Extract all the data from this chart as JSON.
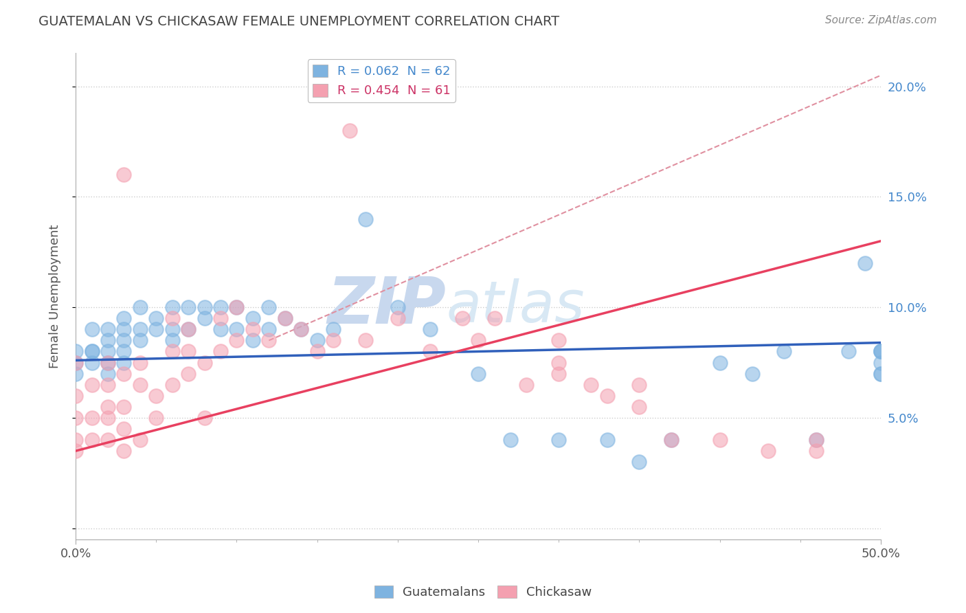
{
  "title": "GUATEMALAN VS CHICKASAW FEMALE UNEMPLOYMENT CORRELATION CHART",
  "source": "Source: ZipAtlas.com",
  "ylabel": "Female Unemployment",
  "y_ticks": [
    0.0,
    0.05,
    0.1,
    0.15,
    0.2
  ],
  "y_tick_labels": [
    "",
    "5.0%",
    "10.0%",
    "15.0%",
    "20.0%"
  ],
  "x_range": [
    0.0,
    0.5
  ],
  "y_range": [
    -0.005,
    0.215
  ],
  "legend_entry1": "R = 0.062  N = 62",
  "legend_entry2": "R = 0.454  N = 61",
  "guatemalan_color": "#7EB3E0",
  "chickasaw_color": "#F4A0B0",
  "guatemalan_line_color": "#3060BB",
  "chickasaw_line_color": "#E84060",
  "ref_line_color": "#E090A0",
  "watermark_zip": "ZIP",
  "watermark_atlas": "atlas",
  "watermark_color": "#C8D8EE",
  "background_color": "#FFFFFF",
  "guatemalan_points_x": [
    0.0,
    0.0,
    0.0,
    0.01,
    0.01,
    0.01,
    0.01,
    0.02,
    0.02,
    0.02,
    0.02,
    0.02,
    0.03,
    0.03,
    0.03,
    0.03,
    0.03,
    0.04,
    0.04,
    0.04,
    0.05,
    0.05,
    0.06,
    0.06,
    0.06,
    0.07,
    0.07,
    0.08,
    0.08,
    0.09,
    0.09,
    0.1,
    0.1,
    0.11,
    0.11,
    0.12,
    0.12,
    0.13,
    0.14,
    0.15,
    0.16,
    0.18,
    0.2,
    0.22,
    0.25,
    0.27,
    0.3,
    0.33,
    0.35,
    0.37,
    0.4,
    0.42,
    0.44,
    0.46,
    0.48,
    0.49,
    0.5,
    0.5,
    0.5,
    0.5,
    0.5,
    0.5
  ],
  "guatemalan_points_y": [
    0.07,
    0.08,
    0.075,
    0.08,
    0.08,
    0.09,
    0.075,
    0.07,
    0.08,
    0.085,
    0.09,
    0.075,
    0.08,
    0.085,
    0.09,
    0.095,
    0.075,
    0.085,
    0.09,
    0.1,
    0.09,
    0.095,
    0.085,
    0.09,
    0.1,
    0.09,
    0.1,
    0.095,
    0.1,
    0.09,
    0.1,
    0.09,
    0.1,
    0.085,
    0.095,
    0.09,
    0.1,
    0.095,
    0.09,
    0.085,
    0.09,
    0.14,
    0.1,
    0.09,
    0.07,
    0.04,
    0.04,
    0.04,
    0.03,
    0.04,
    0.075,
    0.07,
    0.08,
    0.04,
    0.08,
    0.12,
    0.08,
    0.075,
    0.07,
    0.08,
    0.07,
    0.08
  ],
  "chickasaw_points_x": [
    0.0,
    0.0,
    0.0,
    0.0,
    0.0,
    0.01,
    0.01,
    0.01,
    0.02,
    0.02,
    0.02,
    0.02,
    0.02,
    0.03,
    0.03,
    0.03,
    0.03,
    0.03,
    0.04,
    0.04,
    0.04,
    0.05,
    0.05,
    0.06,
    0.06,
    0.06,
    0.07,
    0.07,
    0.07,
    0.08,
    0.08,
    0.09,
    0.09,
    0.1,
    0.1,
    0.11,
    0.12,
    0.13,
    0.14,
    0.15,
    0.16,
    0.17,
    0.18,
    0.2,
    0.22,
    0.24,
    0.25,
    0.26,
    0.28,
    0.3,
    0.3,
    0.3,
    0.32,
    0.33,
    0.35,
    0.35,
    0.37,
    0.4,
    0.43,
    0.46,
    0.46
  ],
  "chickasaw_points_y": [
    0.035,
    0.04,
    0.05,
    0.06,
    0.075,
    0.04,
    0.05,
    0.065,
    0.04,
    0.05,
    0.055,
    0.065,
    0.075,
    0.035,
    0.045,
    0.055,
    0.07,
    0.16,
    0.04,
    0.065,
    0.075,
    0.05,
    0.06,
    0.065,
    0.08,
    0.095,
    0.07,
    0.08,
    0.09,
    0.05,
    0.075,
    0.08,
    0.095,
    0.085,
    0.1,
    0.09,
    0.085,
    0.095,
    0.09,
    0.08,
    0.085,
    0.18,
    0.085,
    0.095,
    0.08,
    0.095,
    0.085,
    0.095,
    0.065,
    0.075,
    0.085,
    0.07,
    0.065,
    0.06,
    0.055,
    0.065,
    0.04,
    0.04,
    0.035,
    0.035,
    0.04
  ],
  "blue_line_x0": 0.0,
  "blue_line_x1": 0.5,
  "blue_line_y0": 0.076,
  "blue_line_y1": 0.084,
  "pink_line_x0": 0.0,
  "pink_line_x1": 0.5,
  "pink_line_y0": 0.035,
  "pink_line_y1": 0.13,
  "ref_line_x0": 0.12,
  "ref_line_x1": 0.5,
  "ref_line_y0": 0.085,
  "ref_line_y1": 0.205
}
